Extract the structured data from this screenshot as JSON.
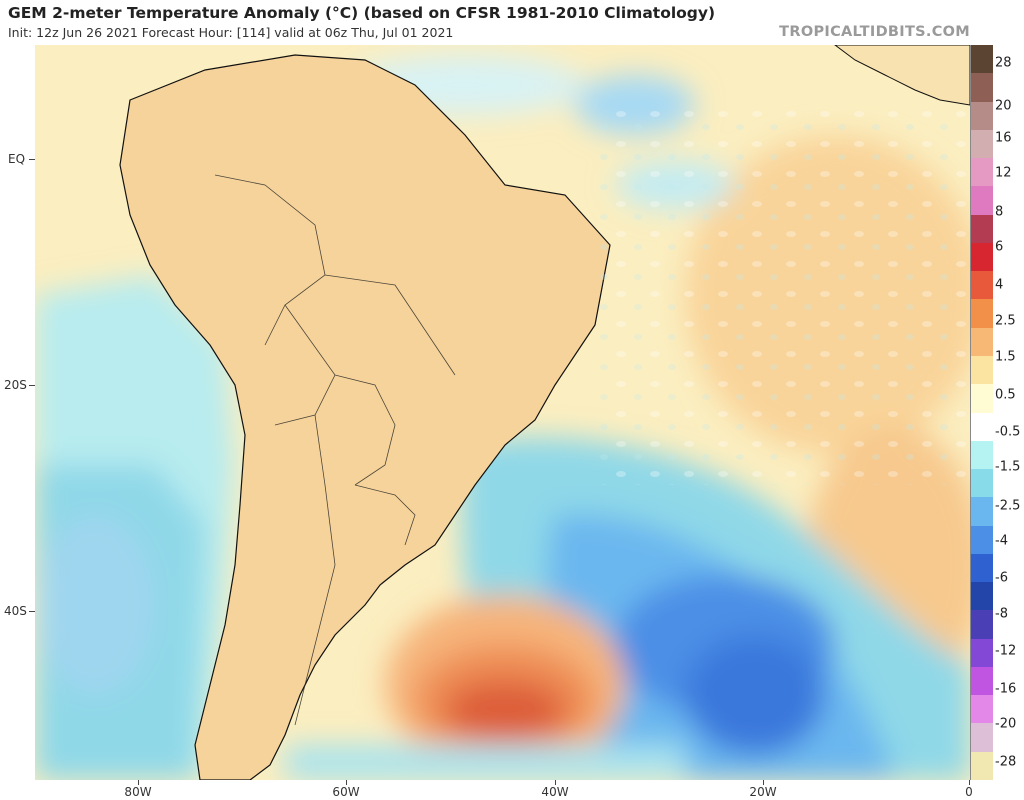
{
  "header": {
    "title": "GEM 2-meter Temperature Anomaly (°C) (based on CFSR 1981-2010 Climatology)",
    "subtitle": "Init: 12z Jun 26 2021   Forecast Hour: [114]   valid at 06z Thu, Jul 01 2021",
    "watermark": "TROPICALTIDBITS.COM"
  },
  "map": {
    "region": "South America and South Atlantic",
    "lat_labels": [
      "EQ",
      "20S",
      "40S"
    ],
    "lon_labels": [
      "80W",
      "60W",
      "40W",
      "20W",
      "0"
    ]
  },
  "colorbar": {
    "labels": [
      "28",
      "20",
      "16",
      "12",
      "8",
      "6",
      "4",
      "2.5",
      "1.5",
      "0.5",
      "-0.5",
      "-1.5",
      "-2.5",
      "-4",
      "-6",
      "-8",
      "-12",
      "-16",
      "-20",
      "-28"
    ],
    "colors": [
      "#5c4433",
      "#8e5f55",
      "#b58c88",
      "#d3aeb0",
      "#e59ac3",
      "#e07ac0",
      "#b43c52",
      "#d7262f",
      "#e8583a",
      "#f2904a",
      "#f7b875",
      "#fbe3a1",
      "#fffbd2",
      "#ffffff",
      "#b5f2f2",
      "#88dbe8",
      "#6ab7ef",
      "#4c8fe6",
      "#2f62d0",
      "#2344a8",
      "#4a3fb5",
      "#8448d6",
      "#bf55e0",
      "#e387e8",
      "#ddbfd7",
      "#f0e8b0"
    ]
  }
}
